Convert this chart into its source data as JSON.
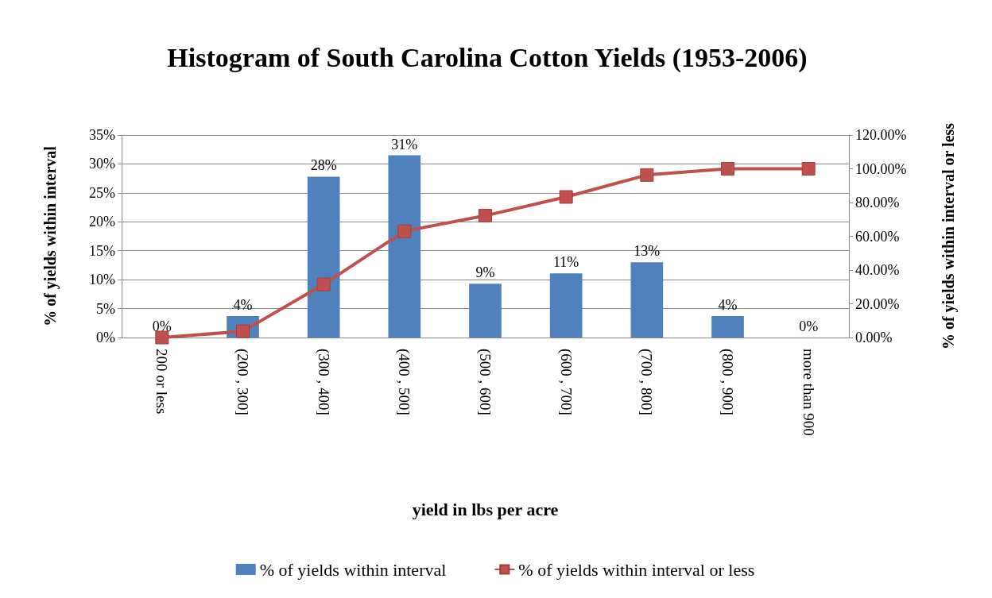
{
  "chart_data": {
    "type": "bar",
    "title": "Histogram of South Carolina Cotton Yields (1953-2006)",
    "xlabel": "yield in lbs per acre",
    "ylabel": "% of yields within interval",
    "y2label": "% of yields within interval or less",
    "categories": [
      "200 or less",
      "(200 , 300]",
      "(300 , 400]",
      "(400 , 500]",
      "(500 , 600]",
      "(600 , 700]",
      "(700 , 800]",
      "(800 , 900]",
      "more than 900"
    ],
    "series": [
      {
        "name": "% of yields within interval",
        "color": "#4f81bd",
        "values": [
          0,
          3.7,
          27.8,
          31.5,
          9.3,
          11.1,
          13.0,
          3.7,
          0
        ],
        "value_labels": [
          "0%",
          "4%",
          "28%",
          "31%",
          "9%",
          "11%",
          "13%",
          "4%",
          "0%"
        ]
      },
      {
        "name": "% of yields within interval or less",
        "type": "line",
        "axis": "y2",
        "color": "#c0504d",
        "marker": "square",
        "line_style": "solid",
        "values": [
          0,
          3.7,
          31.5,
          63.0,
          72.2,
          83.3,
          96.3,
          100,
          100
        ]
      }
    ],
    "ylim": [
      0,
      35
    ],
    "yticks": [
      {
        "value": 0,
        "label": "0%"
      },
      {
        "value": 5,
        "label": "5%"
      },
      {
        "value": 10,
        "label": "10%"
      },
      {
        "value": 15,
        "label": "15%"
      },
      {
        "value": 20,
        "label": "20%"
      },
      {
        "value": 25,
        "label": "25%"
      },
      {
        "value": 30,
        "label": "30%"
      },
      {
        "value": 35,
        "label": "35%"
      }
    ],
    "y2lim": [
      0,
      120
    ],
    "y2ticks": [
      {
        "value": 0,
        "label": "0.00%"
      },
      {
        "value": 20,
        "label": "20.00%"
      },
      {
        "value": 40,
        "label": "40.00%"
      },
      {
        "value": 60,
        "label": "60.00%"
      },
      {
        "value": 80,
        "label": "80.00%"
      },
      {
        "value": 100,
        "label": "100.00%"
      },
      {
        "value": 120,
        "label": "120.00%"
      }
    ],
    "grid": "y",
    "legend": "bottom"
  }
}
